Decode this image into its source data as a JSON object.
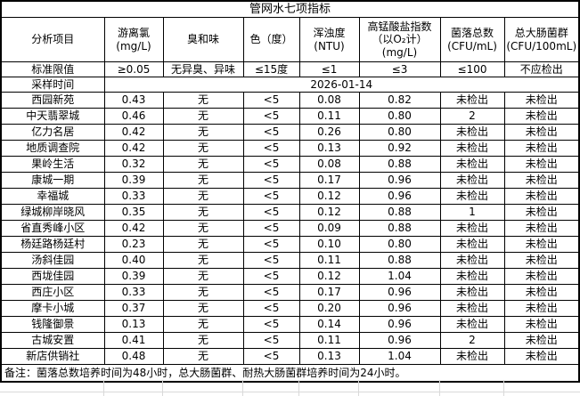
{
  "table": {
    "title": "管网水七项指标",
    "columns": [
      "分析项目",
      "游离氯\n(mg/L)",
      "臭和味",
      "色（度）",
      "浑浊度\n(NTU)",
      "高锰酸盐指数\n（以O₂计）\n(mg/L)",
      "菌落总数\n(CFU/mL)",
      "总大肠菌群\n(CFU/100mL)"
    ],
    "limits_label": "标准限值",
    "limits_values": [
      "≥0.05",
      "无异臭、异味",
      "≤15度",
      "≤1",
      "≤3",
      "≤100",
      "不应检出"
    ],
    "sampling_label": "采样时间",
    "sampling_date": "2026-01-14",
    "rows": [
      {
        "name": "西园新苑",
        "values": [
          "0.43",
          "无",
          "<5",
          "0.08",
          "0.82",
          "未检出",
          "未检出"
        ]
      },
      {
        "name": "中天翡翠城",
        "values": [
          "0.46",
          "无",
          "<5",
          "0.11",
          "0.80",
          "2",
          "未检出"
        ]
      },
      {
        "name": "亿力名居",
        "values": [
          "0.42",
          "无",
          "<5",
          "0.26",
          "0.80",
          "未检出",
          "未检出"
        ]
      },
      {
        "name": "地质调查院",
        "values": [
          "0.42",
          "无",
          "<5",
          "0.13",
          "0.92",
          "未检出",
          "未检出"
        ]
      },
      {
        "name": "果岭生活",
        "values": [
          "0.32",
          "无",
          "<5",
          "0.08",
          "0.88",
          "未检出",
          "未检出"
        ]
      },
      {
        "name": "康城一期",
        "values": [
          "0.39",
          "无",
          "<5",
          "0.17",
          "0.96",
          "未检出",
          "未检出"
        ]
      },
      {
        "name": "幸福城",
        "values": [
          "0.33",
          "无",
          "<5",
          "0.12",
          "0.96",
          "未检出",
          "未检出"
        ]
      },
      {
        "name": "绿城柳岸晓风",
        "values": [
          "0.35",
          "无",
          "<5",
          "0.12",
          "0.88",
          "1",
          "未检出"
        ]
      },
      {
        "name": "省直秀峰小区",
        "values": [
          "0.42",
          "无",
          "<5",
          "0.09",
          "0.88",
          "未检出",
          "未检出"
        ]
      },
      {
        "name": "杨廷路杨廷村",
        "values": [
          "0.23",
          "无",
          "<5",
          "0.10",
          "0.80",
          "未检出",
          "未检出"
        ]
      },
      {
        "name": "汤斜佳园",
        "values": [
          "0.40",
          "无",
          "<5",
          "0.11",
          "0.88",
          "未检出",
          "未检出"
        ]
      },
      {
        "name": "西垅佳园",
        "values": [
          "0.39",
          "无",
          "<5",
          "0.12",
          "1.04",
          "未检出",
          "未检出"
        ]
      },
      {
        "name": "西庄小区",
        "values": [
          "0.33",
          "无",
          "<5",
          "0.17",
          "0.96",
          "未检出",
          "未检出"
        ]
      },
      {
        "name": "摩卡小城",
        "values": [
          "0.37",
          "无",
          "<5",
          "0.20",
          "0.96",
          "未检出",
          "未检出"
        ]
      },
      {
        "name": "钱隆御景",
        "values": [
          "0.13",
          "无",
          "<5",
          "0.14",
          "0.96",
          "未检出",
          "未检出"
        ]
      },
      {
        "name": "古城安置",
        "values": [
          "0.41",
          "无",
          "<5",
          "0.11",
          "0.96",
          "2",
          "未检出"
        ]
      },
      {
        "name": "新店供销社",
        "values": [
          "0.48",
          "无",
          "<5",
          "0.13",
          "1.04",
          "未检出",
          "未检出"
        ]
      }
    ],
    "note": "备注：菌落总数培养时间为48小时，总大肠菌群、耐热大肠菌群培养时间为24小时。",
    "colors": {
      "border": "#000000",
      "faint_gridline": "#d9d9d9",
      "background": "#ffffff",
      "text": "#000000"
    }
  }
}
